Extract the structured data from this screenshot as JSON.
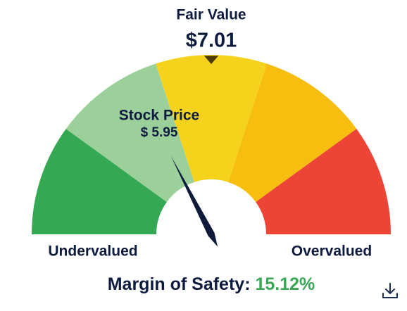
{
  "chart_data": {
    "type": "gauge",
    "title": "Fair Value",
    "fair_value": {
      "value": 7.01,
      "label": "$7.01"
    },
    "stock_price_label": "Stock Price",
    "stock_price": {
      "value": 5.95,
      "label": "$ 5.95"
    },
    "range": [
      3.505,
      10.515
    ],
    "band_colors": [
      "#34a853",
      "#9bd09a",
      "#f5d31c",
      "#f7be0f",
      "#ec4536"
    ],
    "left_label": "Undervalued",
    "right_label": "Overvalued",
    "margin_label": "Margin of Safety:",
    "margin_of_safety": {
      "value": 15.12,
      "label": "15.12%"
    },
    "needle_color": "#0d1a3a",
    "margin_color": "#3aa655"
  }
}
